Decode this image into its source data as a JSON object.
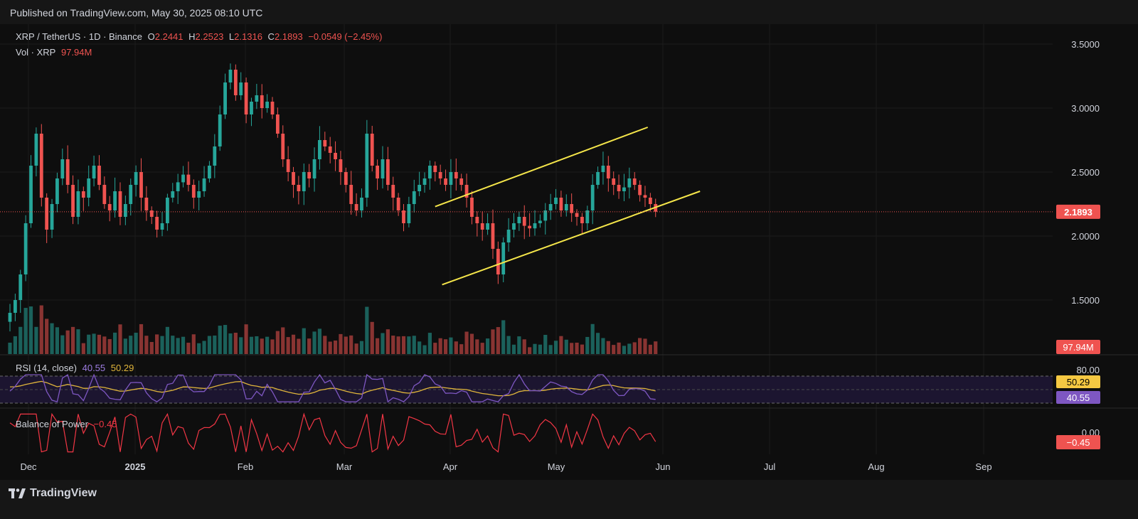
{
  "header": {
    "published": "Published on TradingView.com, May 30, 2025 08:10 UTC"
  },
  "legend": {
    "symbol": "XRP / TetherUS · 1D · Binance",
    "o_label": "O",
    "o_value": "2.2441",
    "h_label": "H",
    "h_value": "2.2523",
    "l_label": "L",
    "l_value": "2.1316",
    "c_label": "C",
    "c_value": "2.1893",
    "change": "−0.0549 (−2.45%)",
    "vol_label": "Vol · XRP",
    "vol_value": "97.94M",
    "rsi_label": "RSI (14, close)",
    "rsi_value": "40.55",
    "rsi_ma_value": "50.29",
    "bop_label": "Balance of Power",
    "bop_value": "−0.45"
  },
  "footer": {
    "brand": "TradingView"
  },
  "colors": {
    "up": "#26a69a",
    "down": "#ef5350",
    "trend": "#f5e64a",
    "rsi": "#7e57c2",
    "rsi_ma": "#e0b53b",
    "bop": "#f23645",
    "bg": "#0e0e0e"
  },
  "chart_data": {
    "type": "candlestick",
    "price_axis": {
      "ticks": [
        1.5,
        2.0,
        2.5,
        3.0,
        3.5
      ],
      "last_price": 2.1893,
      "last_label": "2.1893"
    },
    "time_axis": {
      "labels": [
        "Dec",
        "2025",
        "Feb",
        "Mar",
        "Apr",
        "May",
        "Jun",
        "Jul",
        "Aug",
        "Sep"
      ]
    },
    "trend_channel": {
      "upper": [
        [
          "2025-04-01",
          2.23
        ],
        [
          "2025-06-01",
          2.85
        ]
      ],
      "lower": [
        [
          "2025-04-03",
          1.62
        ],
        [
          "2025-06-16",
          2.35
        ]
      ]
    },
    "approx_closes": [
      1.4,
      1.5,
      1.7,
      2.1,
      2.55,
      2.8,
      2.3,
      2.05,
      2.25,
      2.45,
      2.6,
      2.4,
      2.15,
      2.35,
      2.3,
      2.45,
      2.55,
      2.4,
      2.25,
      2.2,
      2.35,
      2.15,
      2.25,
      2.4,
      2.5,
      2.3,
      2.2,
      2.15,
      2.05,
      2.1,
      2.3,
      2.35,
      2.42,
      2.48,
      2.4,
      2.3,
      2.35,
      2.45,
      2.55,
      2.7,
      2.95,
      3.2,
      3.3,
      3.1,
      3.2,
      2.95,
      3.05,
      3.1,
      3.0,
      3.05,
      2.95,
      2.8,
      2.6,
      2.5,
      2.4,
      2.35,
      2.5,
      2.45,
      2.6,
      2.75,
      2.7,
      2.65,
      2.6,
      2.5,
      2.4,
      2.25,
      2.2,
      2.3,
      2.8,
      2.55,
      2.45,
      2.6,
      2.4,
      2.3,
      2.2,
      2.1,
      2.25,
      2.35,
      2.4,
      2.45,
      2.55,
      2.5,
      2.45,
      2.4,
      2.5,
      2.45,
      2.4,
      2.3,
      2.15,
      2.1,
      2.05,
      2.1,
      1.9,
      1.7,
      1.95,
      2.05,
      2.1,
      2.15,
      2.08,
      2.06,
      2.1,
      2.12,
      2.2,
      2.25,
      2.3,
      2.2,
      2.25,
      2.18,
      2.15,
      2.1,
      2.2,
      2.4,
      2.5,
      2.55,
      2.45,
      2.4,
      2.35,
      2.38,
      2.45,
      2.4,
      2.32,
      2.3,
      2.25,
      2.19
    ],
    "volume": {
      "last": 97.94,
      "label": "97.94M"
    },
    "rsi": {
      "value": 40.55,
      "ma": 50.29,
      "levels": [
        70,
        30
      ],
      "axis_label": "80.00"
    },
    "balance_of_power": {
      "value": -0.45,
      "zero_label": "0.00",
      "last_label": "−0.45"
    }
  }
}
